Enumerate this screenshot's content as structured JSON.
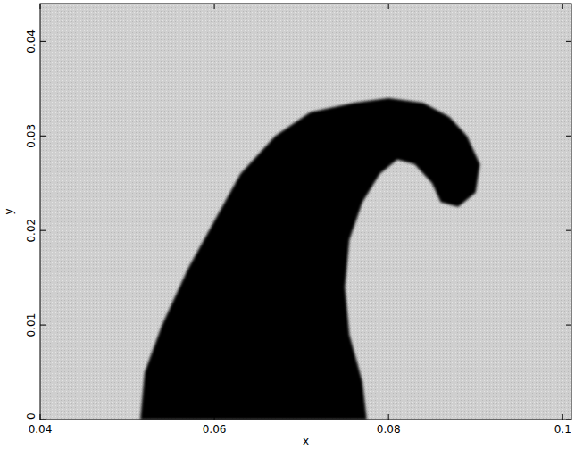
{
  "chart_data": {
    "type": "area",
    "x_label": "x",
    "y_label": "y",
    "xlim": [
      0.04,
      0.101
    ],
    "ylim": [
      0,
      0.044
    ],
    "xticks": [
      0.04,
      0.06,
      0.08,
      0.1
    ],
    "yticks": [
      0,
      0.01,
      0.02,
      0.03,
      0.04
    ],
    "background": "#cfcfcf",
    "series": [
      {
        "color": "#000000",
        "x": [
          0.0515,
          0.052,
          0.054,
          0.057,
          0.06,
          0.063,
          0.067,
          0.071,
          0.076,
          0.08,
          0.084,
          0.087,
          0.089,
          0.0905,
          0.09,
          0.088,
          0.086,
          0.085,
          0.083,
          0.081,
          0.079,
          0.077,
          0.0755,
          0.075,
          0.0755,
          0.077,
          0.0775
        ],
        "values": [
          0,
          0.005,
          0.01,
          0.016,
          0.021,
          0.026,
          0.03,
          0.0325,
          0.0335,
          0.034,
          0.0335,
          0.032,
          0.03,
          0.027,
          0.024,
          0.0225,
          0.023,
          0.025,
          0.027,
          0.0275,
          0.026,
          0.023,
          0.019,
          0.014,
          0.009,
          0.004,
          0
        ]
      }
    ]
  }
}
